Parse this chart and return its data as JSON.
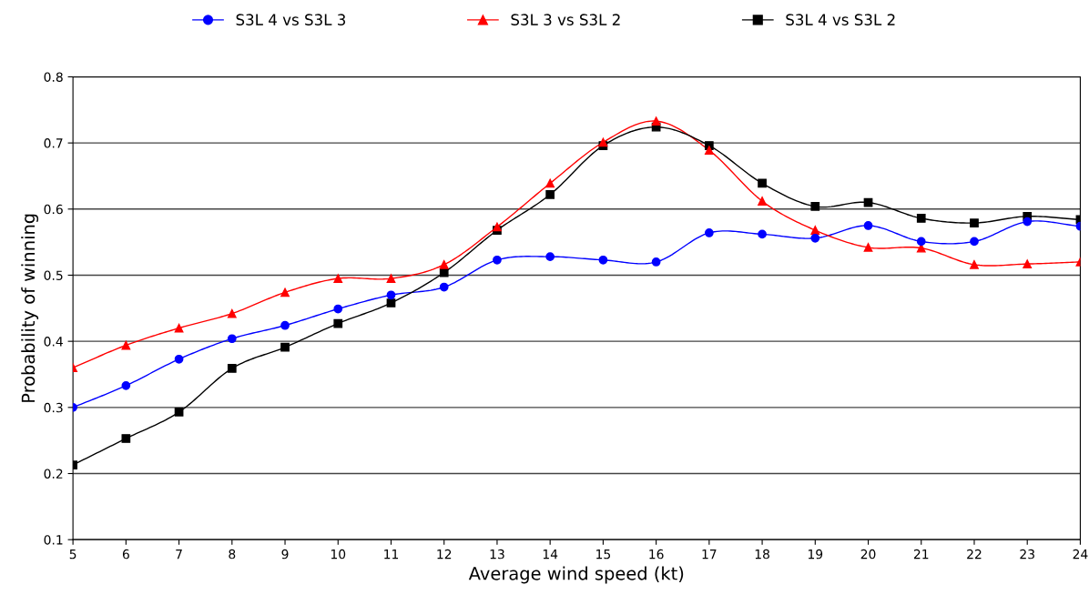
{
  "chart_data": {
    "type": "line",
    "xlabel": "Average wind speed (kt)",
    "ylabel": "Probability of winning",
    "x": [
      5,
      6,
      7,
      8,
      9,
      10,
      11,
      12,
      13,
      14,
      15,
      16,
      17,
      18,
      19,
      20,
      21,
      22,
      23,
      24
    ],
    "series": [
      {
        "name": "S3L 4 vs S3L 3",
        "color": "#0000ff",
        "marker": "circle",
        "values": [
          0.3,
          0.333,
          0.373,
          0.404,
          0.424,
          0.449,
          0.47,
          0.482,
          0.523,
          0.528,
          0.523,
          0.52,
          0.564,
          0.562,
          0.556,
          0.575,
          0.551,
          0.551,
          0.581,
          0.574
        ]
      },
      {
        "name": "S3L 3 vs S3L 2",
        "color": "#ff0000",
        "marker": "triangle",
        "values": [
          0.36,
          0.394,
          0.42,
          0.442,
          0.474,
          0.495,
          0.495,
          0.516,
          0.573,
          0.639,
          0.701,
          0.733,
          0.689,
          0.612,
          0.568,
          0.542,
          0.541,
          0.516,
          0.517,
          0.52
        ]
      },
      {
        "name": "S3L 4 vs S3L 2",
        "color": "#000000",
        "marker": "square",
        "values": [
          0.213,
          0.253,
          0.293,
          0.359,
          0.391,
          0.427,
          0.458,
          0.504,
          0.568,
          0.622,
          0.696,
          0.724,
          0.696,
          0.639,
          0.604,
          0.61,
          0.586,
          0.579,
          0.589,
          0.584
        ]
      }
    ],
    "xlim": [
      5,
      24
    ],
    "xticks": [
      5,
      6,
      7,
      8,
      9,
      10,
      11,
      12,
      13,
      14,
      15,
      16,
      17,
      18,
      19,
      20,
      21,
      22,
      23,
      24
    ],
    "ylim": [
      0.1,
      0.8
    ],
    "yticks": [
      0.1,
      0.2,
      0.3,
      0.4,
      0.5,
      0.6,
      0.7,
      0.8
    ],
    "grid": "y",
    "legend": "top",
    "line_style": "solid"
  }
}
